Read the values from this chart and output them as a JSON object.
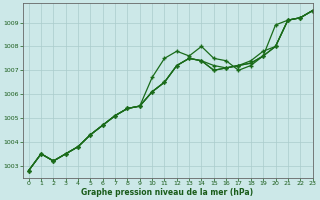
{
  "title": "Graphe pression niveau de la mer (hPa)",
  "bg_color": "#cce8e8",
  "line_color": "#1a6b1a",
  "grid_color": "#aacccc",
  "tick_color": "#1a5c1a",
  "xlim": [
    -0.5,
    23
  ],
  "ylim": [
    1002.5,
    1009.8
  ],
  "yticks": [
    1003,
    1004,
    1005,
    1006,
    1007,
    1008,
    1009
  ],
  "xticks": [
    0,
    1,
    2,
    3,
    4,
    5,
    6,
    7,
    8,
    9,
    10,
    11,
    12,
    13,
    14,
    15,
    16,
    17,
    18,
    19,
    20,
    21,
    22,
    23
  ],
  "series": [
    [
      1002.8,
      1003.5,
      1003.2,
      1003.5,
      1003.8,
      1004.3,
      1004.7,
      1005.1,
      1005.4,
      1005.5,
      1006.1,
      1006.5,
      1007.2,
      1007.5,
      1007.4,
      1007.0,
      1007.1,
      1007.2,
      1007.3,
      1007.6,
      1008.0,
      1009.1,
      1009.2,
      1009.5
    ],
    [
      1002.8,
      1003.5,
      1003.2,
      1003.5,
      1003.8,
      1004.3,
      1004.7,
      1005.1,
      1005.4,
      1005.5,
      1006.7,
      1007.5,
      1007.8,
      1007.6,
      1008.0,
      1007.5,
      1007.4,
      1007.0,
      1007.2,
      1007.6,
      1008.0,
      1009.1,
      1009.2,
      1009.5
    ],
    [
      1002.8,
      1003.5,
      1003.2,
      1003.5,
      1003.8,
      1004.3,
      1004.7,
      1005.1,
      1005.4,
      1005.5,
      1006.1,
      1006.5,
      1007.2,
      1007.5,
      1007.4,
      1007.2,
      1007.1,
      1007.2,
      1007.4,
      1007.8,
      1008.0,
      1009.1,
      1009.2,
      1009.5
    ],
    [
      1002.8,
      1003.5,
      1003.2,
      1003.5,
      1003.8,
      1004.3,
      1004.7,
      1005.1,
      1005.4,
      1005.5,
      1006.1,
      1006.5,
      1007.2,
      1007.5,
      1007.4,
      1007.0,
      1007.1,
      1007.2,
      1007.3,
      1007.6,
      1008.9,
      1009.1,
      1009.2,
      1009.5
    ]
  ],
  "figsize": [
    3.2,
    2.0
  ],
  "dpi": 100
}
